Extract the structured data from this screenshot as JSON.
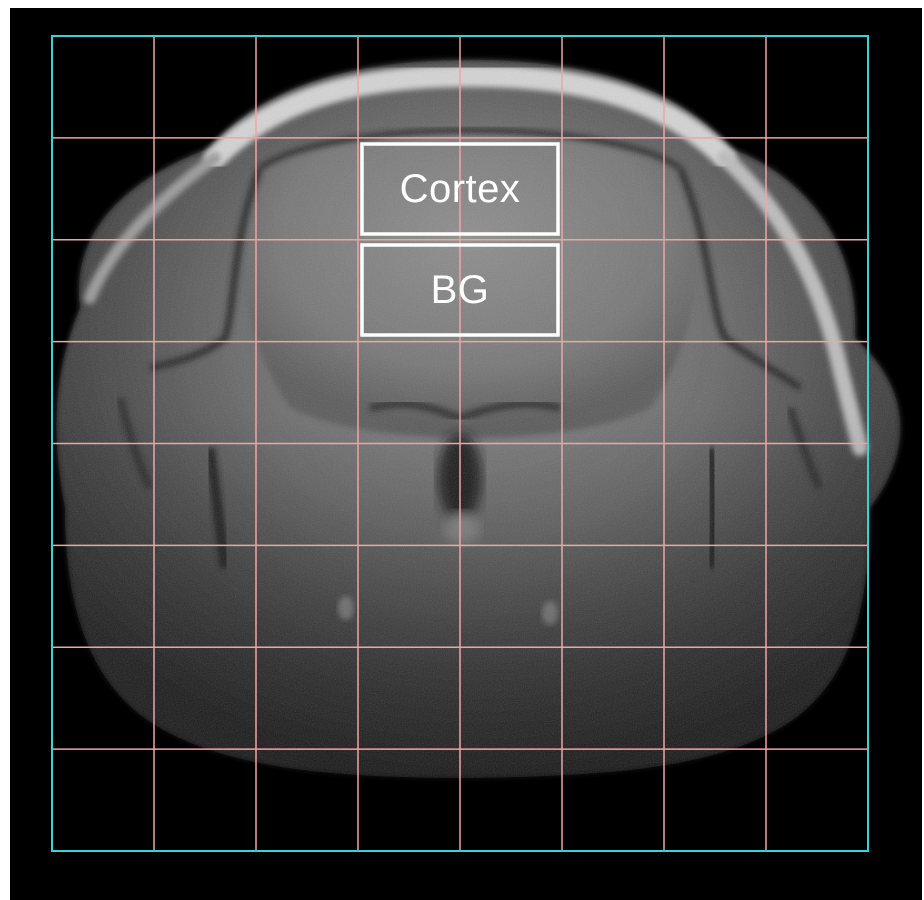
{
  "image": {
    "description_type": "axial MRI brain slice with overlaid grid",
    "grid": {
      "rows": 8,
      "columns": 8,
      "line_color": "#f0a3a8",
      "border_color": "#3fd0d4"
    },
    "roi_color": "#ffffff",
    "regions": [
      {
        "id": "cortex",
        "label": "Cortex"
      },
      {
        "id": "bg",
        "label": "BG"
      }
    ]
  }
}
